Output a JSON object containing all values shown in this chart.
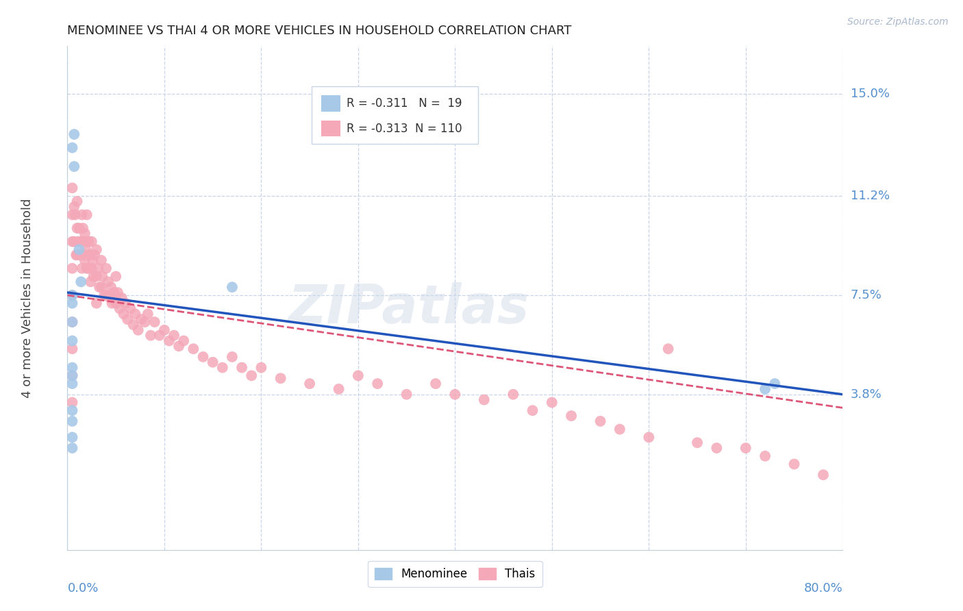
{
  "title": "MENOMINEE VS THAI 4 OR MORE VEHICLES IN HOUSEHOLD CORRELATION CHART",
  "source": "Source: ZipAtlas.com",
  "ylabel": "4 or more Vehicles in Household",
  "xlim": [
    0.0,
    0.8
  ],
  "ylim": [
    -0.02,
    0.168
  ],
  "xticks": [
    0.0,
    0.1,
    0.2,
    0.3,
    0.4,
    0.5,
    0.6,
    0.7,
    0.8
  ],
  "ytick_positions": [
    0.038,
    0.075,
    0.112,
    0.15
  ],
  "ytick_labels": [
    "3.8%",
    "7.5%",
    "11.2%",
    "15.0%"
  ],
  "menominee_color": "#a8c8e8",
  "thai_color": "#f4a8b8",
  "menominee_line_color": "#2255bb",
  "thai_line_color": "#dd5577",
  "menominee_R": -0.311,
  "menominee_N": 19,
  "thai_R": -0.313,
  "thai_N": 110,
  "background_color": "#ffffff",
  "grid_color": "#c8d4e8",
  "watermark": "ZIPatlas",
  "menominee_x": [
    0.005,
    0.007,
    0.007,
    0.012,
    0.014,
    0.005,
    0.005,
    0.005,
    0.005,
    0.005,
    0.005,
    0.005,
    0.005,
    0.005,
    0.005,
    0.005,
    0.17,
    0.73,
    0.72
  ],
  "menominee_y": [
    0.13,
    0.135,
    0.123,
    0.092,
    0.08,
    0.075,
    0.072,
    0.065,
    0.058,
    0.048,
    0.042,
    0.032,
    0.028,
    0.022,
    0.018,
    0.045,
    0.078,
    0.042,
    0.04
  ],
  "thai_x": [
    0.005,
    0.005,
    0.005,
    0.005,
    0.005,
    0.005,
    0.005,
    0.005,
    0.005,
    0.007,
    0.007,
    0.008,
    0.009,
    0.01,
    0.01,
    0.01,
    0.011,
    0.012,
    0.013,
    0.014,
    0.015,
    0.015,
    0.015,
    0.016,
    0.017,
    0.018,
    0.018,
    0.019,
    0.02,
    0.02,
    0.02,
    0.022,
    0.022,
    0.023,
    0.024,
    0.025,
    0.025,
    0.026,
    0.027,
    0.028,
    0.03,
    0.03,
    0.03,
    0.032,
    0.033,
    0.035,
    0.035,
    0.036,
    0.038,
    0.04,
    0.04,
    0.042,
    0.044,
    0.045,
    0.046,
    0.048,
    0.05,
    0.05,
    0.052,
    0.054,
    0.056,
    0.058,
    0.06,
    0.062,
    0.065,
    0.068,
    0.07,
    0.073,
    0.076,
    0.08,
    0.083,
    0.086,
    0.09,
    0.095,
    0.1,
    0.105,
    0.11,
    0.115,
    0.12,
    0.13,
    0.14,
    0.15,
    0.16,
    0.17,
    0.18,
    0.19,
    0.2,
    0.22,
    0.25,
    0.28,
    0.3,
    0.32,
    0.35,
    0.38,
    0.4,
    0.43,
    0.46,
    0.48,
    0.5,
    0.52,
    0.55,
    0.57,
    0.6,
    0.62,
    0.65,
    0.67,
    0.7,
    0.72,
    0.75,
    0.78
  ],
  "thai_y": [
    0.115,
    0.105,
    0.095,
    0.085,
    0.075,
    0.065,
    0.055,
    0.045,
    0.035,
    0.108,
    0.095,
    0.105,
    0.09,
    0.11,
    0.1,
    0.09,
    0.095,
    0.1,
    0.09,
    0.095,
    0.105,
    0.095,
    0.085,
    0.1,
    0.09,
    0.098,
    0.088,
    0.092,
    0.105,
    0.095,
    0.085,
    0.095,
    0.085,
    0.09,
    0.08,
    0.095,
    0.085,
    0.088,
    0.082,
    0.09,
    0.092,
    0.082,
    0.072,
    0.085,
    0.078,
    0.088,
    0.078,
    0.082,
    0.075,
    0.085,
    0.075,
    0.08,
    0.074,
    0.078,
    0.072,
    0.076,
    0.082,
    0.072,
    0.076,
    0.07,
    0.074,
    0.068,
    0.072,
    0.066,
    0.07,
    0.064,
    0.068,
    0.062,
    0.066,
    0.065,
    0.068,
    0.06,
    0.065,
    0.06,
    0.062,
    0.058,
    0.06,
    0.056,
    0.058,
    0.055,
    0.052,
    0.05,
    0.048,
    0.052,
    0.048,
    0.045,
    0.048,
    0.044,
    0.042,
    0.04,
    0.045,
    0.042,
    0.038,
    0.042,
    0.038,
    0.036,
    0.038,
    0.032,
    0.035,
    0.03,
    0.028,
    0.025,
    0.022,
    0.055,
    0.02,
    0.018,
    0.018,
    0.015,
    0.012,
    0.008
  ],
  "men_line_x": [
    0.0,
    0.8
  ],
  "men_line_y": [
    0.076,
    0.038
  ],
  "thai_line_x": [
    0.0,
    0.8
  ],
  "thai_line_y": [
    0.075,
    0.033
  ]
}
